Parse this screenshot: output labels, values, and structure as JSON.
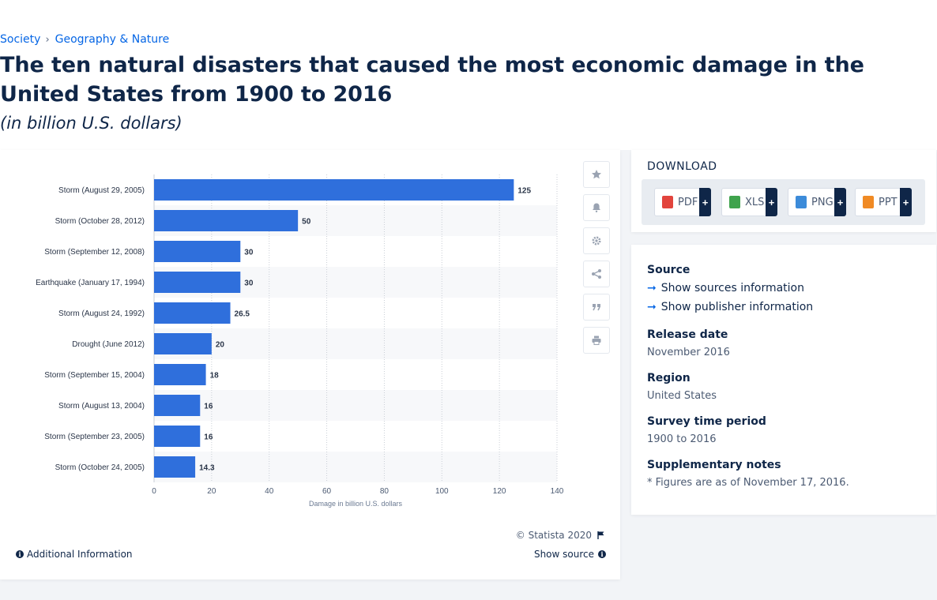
{
  "breadcrumb": {
    "items": [
      "Society",
      "Geography & Nature"
    ],
    "separator": "›"
  },
  "page": {
    "title": "The ten natural disasters that caused the most economic damage in the United States from 1900 to 2016",
    "subtitle": "(in billion U.S. dollars)"
  },
  "chart_footer": {
    "credit": "© Statista 2020",
    "show_source": "Show source",
    "additional_info": "Additional Information"
  },
  "chart_tools": [
    "star-icon",
    "bell-icon",
    "gear-icon",
    "share-icon",
    "quote-icon",
    "print-icon"
  ],
  "download": {
    "title": "DOWNLOAD",
    "buttons": [
      {
        "label": "PDF",
        "color": "#e2443d"
      },
      {
        "label": "XLS",
        "color": "#3fa34d"
      },
      {
        "label": "PNG",
        "color": "#3c8bd9"
      },
      {
        "label": "PPT",
        "color": "#f08a24"
      }
    ],
    "plus": "+"
  },
  "meta": {
    "source_label": "Source",
    "show_sources": "Show sources information",
    "show_publisher": "Show publisher information",
    "release_label": "Release date",
    "release_value": "November 2016",
    "region_label": "Region",
    "region_value": "United States",
    "period_label": "Survey time period",
    "period_value": "1900 to 2016",
    "notes_label": "Supplementary notes",
    "notes_value": "* Figures are as of November 17, 2016."
  },
  "colors": {
    "bar": "#2f6fdc",
    "accent": "#0666e5",
    "text": "#0f2648"
  },
  "chart_data": {
    "type": "bar",
    "orientation": "horizontal",
    "categories": [
      "Storm (August 29, 2005)",
      "Storm (October 28, 2012)",
      "Storm (September 12, 2008)",
      "Earthquake (January 17, 1994)",
      "Storm (August 24, 1992)",
      "Drought (June 2012)",
      "Storm (September 15, 2004)",
      "Storm (August 13, 2004)",
      "Storm (September 23, 2005)",
      "Storm (October 24, 2005)"
    ],
    "values": [
      125,
      50,
      30,
      30,
      26.5,
      20,
      18,
      16,
      16,
      14.3
    ],
    "xlabel": "Damage in billion U.S. dollars",
    "xlim": [
      0,
      140
    ],
    "xticks": [
      0,
      20,
      40,
      60,
      80,
      100,
      120,
      140
    ],
    "grid": true,
    "data_labels": true
  }
}
